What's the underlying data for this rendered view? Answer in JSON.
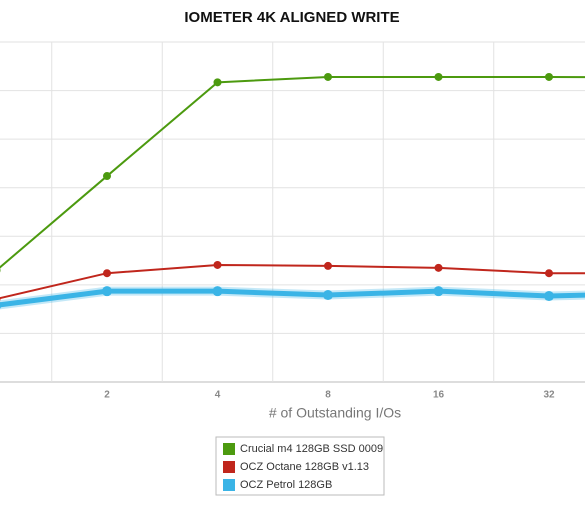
{
  "chart_data": {
    "type": "line",
    "title": "IOMETER 4K ALIGNED WRITE",
    "x_label": "# of Outstanding I/Os",
    "categories": [
      null,
      "2",
      "4",
      "8",
      "16",
      "32",
      null
    ],
    "ylim": [
      0,
      7
    ],
    "series": [
      {
        "name": "Crucial m4 128GB SSD 0009",
        "color": "#4c9a0f",
        "values": [
          2.3,
          4.24,
          6.17,
          6.28,
          6.28,
          6.28,
          6.27
        ]
      },
      {
        "name": "OCZ Octane 128GB v1.13",
        "color": "#c0261c",
        "values": [
          1.71,
          2.24,
          2.41,
          2.39,
          2.35,
          2.24,
          2.24
        ]
      },
      {
        "name": "OCZ Petrol 128GB",
        "color": "#3ab4e6",
        "values": [
          1.58,
          1.87,
          1.87,
          1.79,
          1.87,
          1.77,
          1.83
        ]
      }
    ]
  }
}
